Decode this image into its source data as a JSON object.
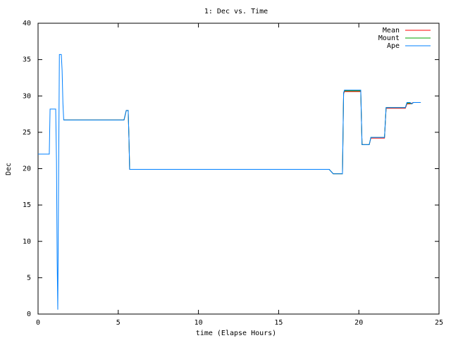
{
  "chart_data": {
    "type": "line",
    "title": "1: Dec vs. Time",
    "x_label": "time (Elapse Hours)",
    "y_label": "Dec",
    "xlim": [
      0,
      25
    ],
    "ylim": [
      0,
      40
    ],
    "xticks": [
      0,
      5,
      10,
      15,
      20,
      25
    ],
    "yticks": [
      0,
      5,
      10,
      15,
      20,
      25,
      30,
      35,
      40
    ],
    "legend": "top-right",
    "x": [
      0,
      0.7,
      0.75,
      1.1,
      1.15,
      1.19,
      1.23,
      1.33,
      1.45,
      1.5,
      1.55,
      1.6,
      5.36,
      5.5,
      5.62,
      5.67,
      5.71,
      18.15,
      18.4,
      18.98,
      19.05,
      19.1,
      20.12,
      20.2,
      20.65,
      20.75,
      21.6,
      21.7,
      22.9,
      23.0,
      23.2,
      23.3,
      23.4,
      23.86
    ],
    "series": [
      {
        "name": "Mean",
        "color": "#ff0000",
        "values": [
          null,
          null,
          null,
          null,
          null,
          null,
          null,
          null,
          null,
          null,
          null,
          26.7,
          26.7,
          28,
          28,
          24,
          19.9,
          19.9,
          19.3,
          19.3,
          30.3,
          30.6,
          30.6,
          23.3,
          23.3,
          24.2,
          24.2,
          28.3,
          28.3,
          28.9,
          28.9,
          29.0,
          29.1,
          29.1
        ]
      },
      {
        "name": "Mount",
        "color": "#00a000",
        "values": [
          null,
          null,
          null,
          null,
          null,
          null,
          null,
          null,
          null,
          null,
          null,
          26.7,
          26.7,
          28,
          28,
          24,
          19.9,
          19.9,
          19.3,
          19.3,
          30.4,
          30.7,
          30.7,
          23.3,
          23.3,
          24.3,
          24.3,
          28.4,
          28.4,
          29.0,
          29.0,
          28.9,
          29.1,
          29.1
        ]
      },
      {
        "name": "Ape",
        "color": "#0080ff",
        "values": [
          22,
          22,
          28.2,
          28.2,
          21,
          7.5,
          0.6,
          35.7,
          35.7,
          33.5,
          29,
          26.7,
          26.7,
          28,
          28,
          24,
          19.9,
          19.9,
          19.3,
          19.3,
          30.4,
          30.8,
          30.8,
          23.3,
          23.3,
          24.3,
          24.3,
          28.4,
          28.4,
          29.1,
          29.1,
          28.9,
          29.1,
          29.1
        ]
      }
    ]
  }
}
